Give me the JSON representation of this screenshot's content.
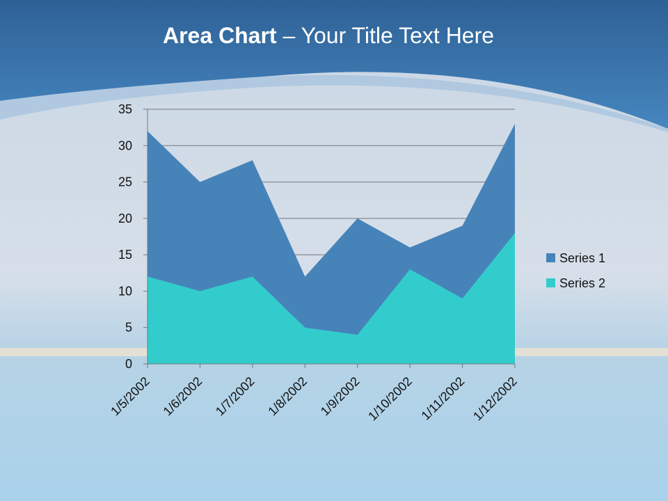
{
  "chart_data": {
    "type": "area",
    "title": [
      "Area Chart",
      "– Your Title Text Here"
    ],
    "categories": [
      "1/5/2002",
      "1/6/2002",
      "1/7/2002",
      "1/8/2002",
      "1/9/2002",
      "1/10/2002",
      "1/11/2002",
      "1/12/2002"
    ],
    "series": [
      {
        "name": "Series 1",
        "color": "#4683b9",
        "values": [
          32,
          25,
          28,
          12,
          20,
          16,
          19,
          33
        ]
      },
      {
        "name": "Series 2",
        "color": "#33cccc",
        "values": [
          12,
          10,
          12,
          5,
          4,
          13,
          9,
          18
        ]
      }
    ],
    "ylim": [
      0,
      35
    ],
    "yticks": [
      0,
      5,
      10,
      15,
      20,
      25,
      30,
      35
    ],
    "grid": true,
    "legend": "right"
  }
}
